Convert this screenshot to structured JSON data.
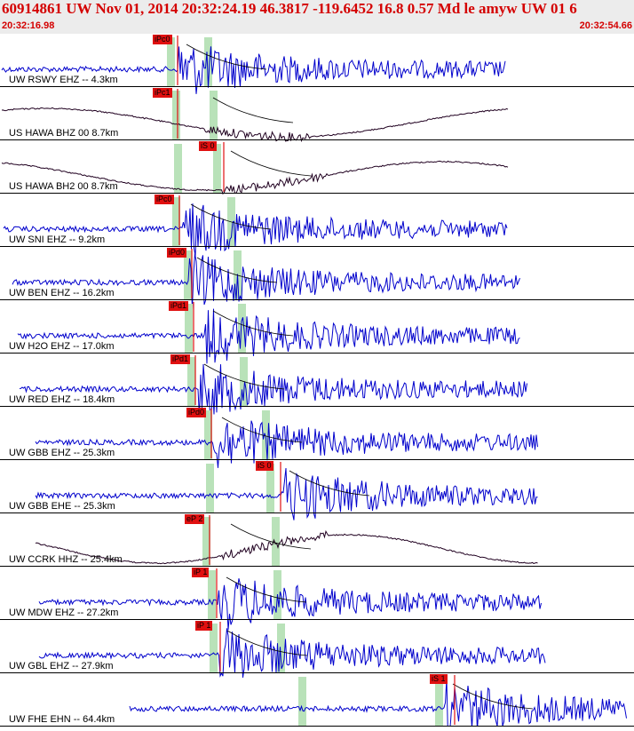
{
  "header": {
    "title": "60914861 UW Nov 01, 2014 20:32:24.19    46.3817 -119.6452 16.8 0.57 Md le amyw UW 01   6",
    "time_start": "20:32:16.98",
    "time_end": "20:32:54.66"
  },
  "colors": {
    "header_text": "#d40000",
    "trace_blue": "#0000cc",
    "trace_dark": "#200020",
    "pick_red": "#e01010",
    "phase_band": "#b9e2b9"
  },
  "traces": [
    {
      "label": "UW RSWY EHZ -- 4.3km",
      "pick": "iPc0",
      "color": "blue",
      "type": "noise"
    },
    {
      "label": "US HAWA BHZ 00 8.7km",
      "pick": "iPc1",
      "color": "dark",
      "type": "sine"
    },
    {
      "label": "US HAWA BH2 00 8.7km",
      "pick": "iS 0",
      "color": "dark",
      "type": "sine"
    },
    {
      "label": "UW SNI EHZ -- 9.2km",
      "pick": "iPc0",
      "color": "blue",
      "type": "noise"
    },
    {
      "label": "UW BEN EHZ -- 16.2km",
      "pick": "iPd0",
      "color": "blue",
      "type": "noise"
    },
    {
      "label": "UW H2O EHZ -- 17.0km",
      "pick": "iPd1",
      "color": "blue",
      "type": "noise"
    },
    {
      "label": "UW RED EHZ -- 18.4km",
      "pick": "iPd1",
      "color": "blue",
      "type": "noise"
    },
    {
      "label": "UW GBB EHZ -- 25.3km",
      "pick": "iPd0",
      "color": "blue",
      "type": "noise"
    },
    {
      "label": "UW GBB EHE -- 25.3km",
      "pick": "iS 0",
      "color": "blue",
      "type": "noise"
    },
    {
      "label": "UW CCRK HHZ -- 25.4km",
      "pick": "eP 2",
      "color": "dark",
      "type": "sine"
    },
    {
      "label": "UW MDW EHZ -- 27.2km",
      "pick": "iP 1",
      "color": "blue",
      "type": "noise"
    },
    {
      "label": "UW GBL EHZ -- 27.9km",
      "pick": "iP 1",
      "color": "blue",
      "type": "noise"
    },
    {
      "label": "UW FHE EHN -- 64.4km",
      "pick": "iS 1",
      "color": "blue",
      "type": "noise"
    }
  ]
}
